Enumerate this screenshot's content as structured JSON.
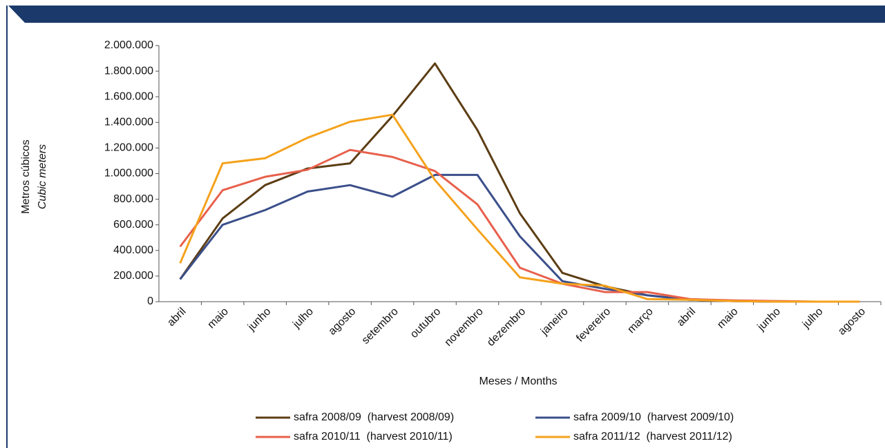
{
  "chart_data": {
    "type": "line",
    "y_label": "Metros cúbicos",
    "y_label_en": "Cubic meters",
    "x_label": "Meses / Months",
    "categories": [
      "abril",
      "maio",
      "junho",
      "julho",
      "agosto",
      "setembro",
      "outubro",
      "novembro",
      "dezembro",
      "janeiro",
      "fevereiro",
      "março",
      "abril",
      "maio",
      "junho",
      "julho",
      "agosto"
    ],
    "series": [
      {
        "name": "safra 2008/09  (harvest 2008/09)",
        "color": "#5c3d14",
        "values": [
          175000,
          650000,
          910000,
          1040000,
          1080000,
          1450000,
          1860000,
          1340000,
          690000,
          225000,
          120000,
          50000,
          15000,
          5000,
          0,
          0,
          0
        ]
      },
      {
        "name": "safra 2009/10  (harvest 2009/10)",
        "color": "#3b4f8a",
        "values": [
          175000,
          600000,
          715000,
          860000,
          910000,
          820000,
          990000,
          990000,
          510000,
          160000,
          100000,
          50000,
          15000,
          5000,
          0,
          0,
          0
        ]
      },
      {
        "name": "safra 2010/11  (harvest 2010/11)",
        "color": "#e8604c",
        "values": [
          430000,
          870000,
          975000,
          1030000,
          1185000,
          1130000,
          1020000,
          760000,
          265000,
          140000,
          75000,
          75000,
          20000,
          10000,
          5000,
          0,
          0
        ]
      },
      {
        "name": "safra 2011/12  (harvest 2011/12)",
        "color": "#f5a21c",
        "values": [
          300000,
          1080000,
          1120000,
          1280000,
          1405000,
          1460000,
          950000,
          565000,
          190000,
          140000,
          125000,
          20000,
          15000,
          5000,
          0,
          0,
          0
        ]
      }
    ],
    "ylim": [
      0,
      2000000
    ],
    "yticks": [
      0,
      {
        "value": 200000,
        "label": "200.000"
      },
      {
        "value": 400000,
        "label": "400.000"
      },
      {
        "value": 600000,
        "label": "600.000"
      },
      {
        "value": 800000,
        "label": "800.000"
      },
      {
        "value": 1000000,
        "label": "1.000.000"
      },
      {
        "value": 1200000,
        "label": "1.200.000"
      },
      {
        "value": 1400000,
        "label": "1.400.000"
      },
      {
        "value": 1600000,
        "label": "1.600.000"
      },
      {
        "value": 1800000,
        "label": "1.800.000"
      },
      {
        "value": 2000000,
        "label": "2.000.000"
      }
    ]
  }
}
